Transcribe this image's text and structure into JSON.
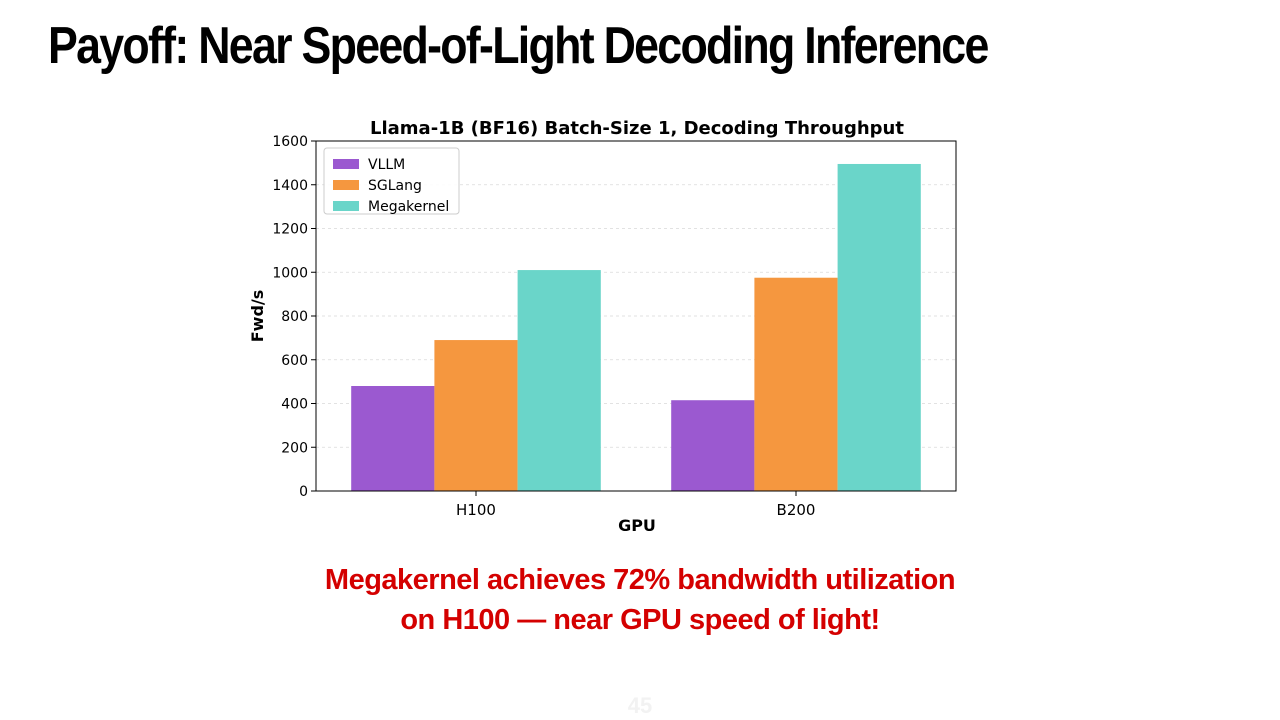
{
  "slide": {
    "title": "Payoff: Near Speed-of-Light Decoding Inference",
    "callout_line1": "Megakernel achieves 72% bandwidth utilization",
    "callout_line2": "on H100 — near GPU speed of light!",
    "page_number": "45"
  },
  "chart_data": {
    "type": "bar",
    "title": "Llama-1B (BF16) Batch-Size 1, Decoding Throughput",
    "xlabel": "GPU",
    "ylabel": "Fwd/s",
    "categories": [
      "H100",
      "B200"
    ],
    "series": [
      {
        "name": "VLLM",
        "values": [
          480,
          415
        ],
        "color": "#9b59d0"
      },
      {
        "name": "SGLang",
        "values": [
          690,
          975
        ],
        "color": "#f5973f"
      },
      {
        "name": "Megakernel",
        "values": [
          1010,
          1495
        ],
        "color": "#6ad5c9"
      }
    ],
    "ylim": [
      0,
      1600
    ],
    "yticks": [
      0,
      200,
      400,
      600,
      800,
      1000,
      1200,
      1400,
      1600
    ],
    "grid": true,
    "legend_position": "top-left"
  }
}
